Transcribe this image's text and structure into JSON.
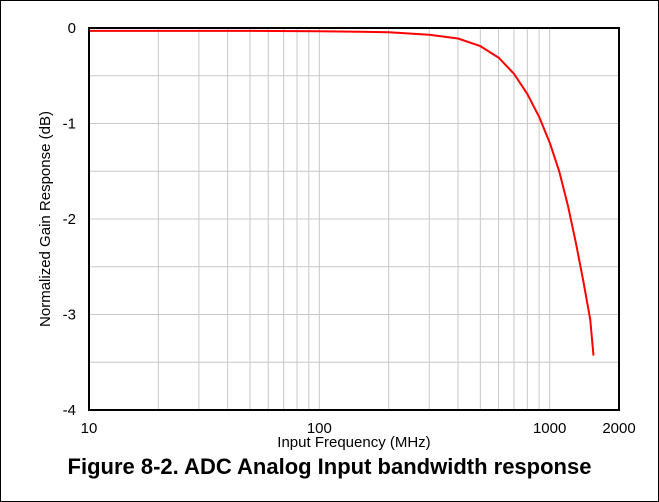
{
  "chart_data": {
    "type": "line",
    "title": "",
    "xlabel": "Input Frequency (MHz)",
    "ylabel": "Normalized Gain Response (dB)",
    "x_scale": "log",
    "xlim": [
      10,
      2000
    ],
    "ylim": [
      -4,
      0
    ],
    "x_ticks": [
      10,
      100,
      1000,
      2000
    ],
    "x_tick_labels": [
      "10",
      "100",
      "1000",
      "2000"
    ],
    "y_ticks": [
      -4,
      -3,
      -2,
      -1,
      0
    ],
    "y_tick_labels": [
      "-4",
      "-3",
      "-2",
      "-1",
      "0"
    ],
    "grid": true,
    "series": [
      {
        "color": "#ff0000",
        "x": [
          10,
          20,
          50,
          100,
          150,
          200,
          300,
          400,
          500,
          600,
          700,
          800,
          900,
          1000,
          1100,
          1200,
          1300,
          1400,
          1500,
          1550
        ],
        "y": [
          -0.03,
          -0.03,
          -0.03,
          -0.035,
          -0.04,
          -0.045,
          -0.07,
          -0.11,
          -0.19,
          -0.31,
          -0.48,
          -0.69,
          -0.93,
          -1.2,
          -1.5,
          -1.86,
          -2.25,
          -2.65,
          -3.05,
          -3.43
        ]
      }
    ]
  },
  "caption": "Figure 8-2. ADC Analog Input bandwidth response"
}
